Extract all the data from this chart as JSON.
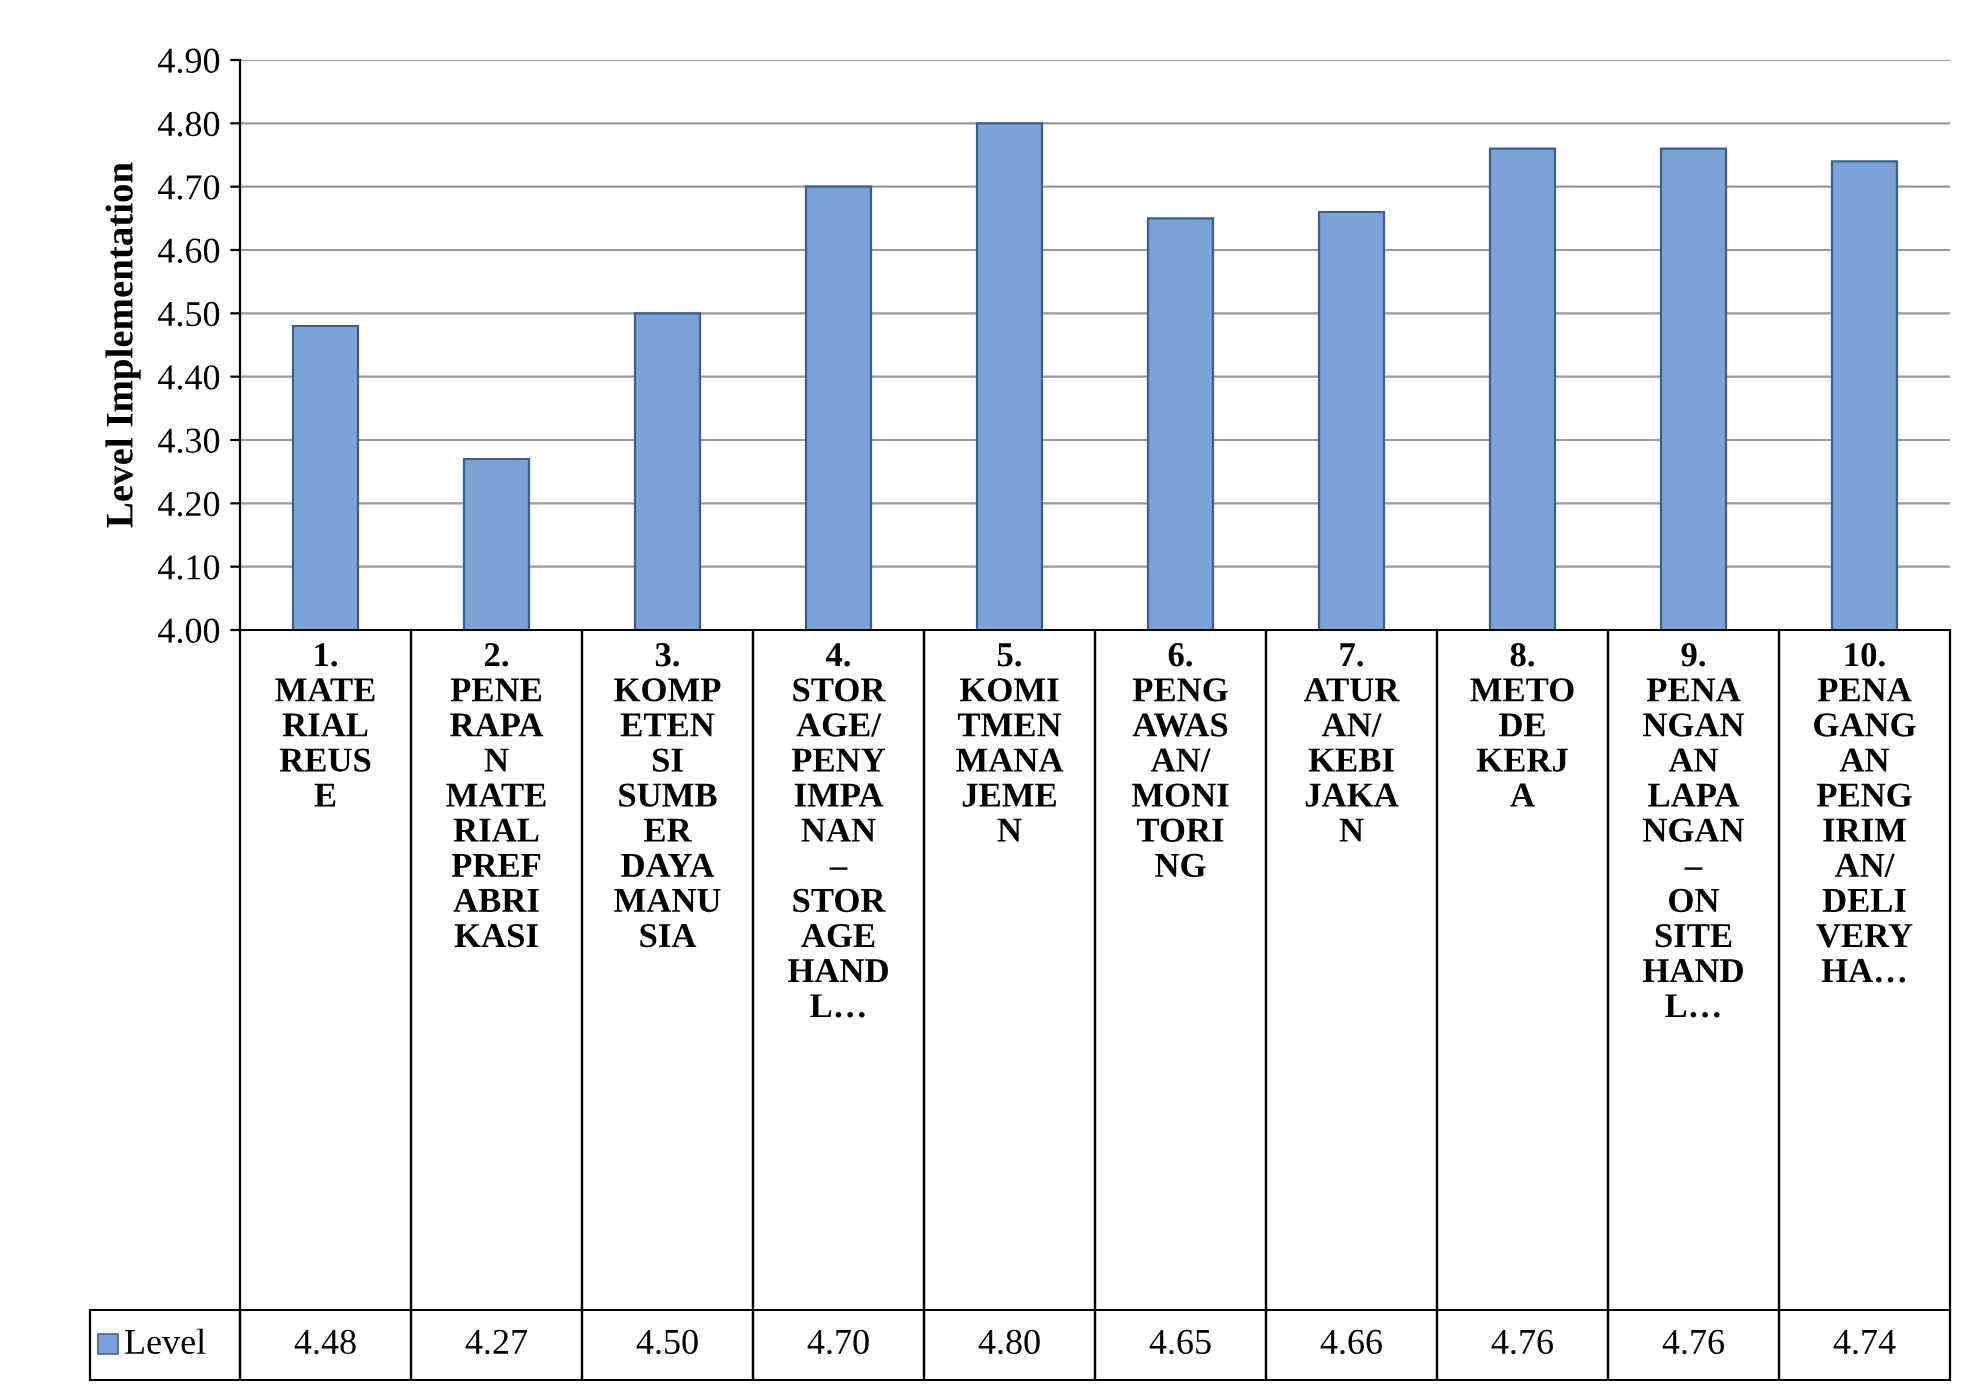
{
  "chart_data": {
    "type": "bar",
    "ylabel": "Level Implementation",
    "categories": [
      "1. MATERIAL REUSE",
      "2. PENERAPAN MATERIAL PREFABRIKASI",
      "3. KOMPETENSI SUMBER DAYA MANUSIA",
      "4. STORAGE/PENYIMPANAN – STORAGE HANDL…",
      "5. KOMITMEN MANAJEMEN",
      "6. PENGAWASAN/MONITORING",
      "7. ATURAN/KEBIJAKAN",
      "8. METODE KERJA",
      "9. PENANGANAN LAPANGAN – ON SITE HANDL…",
      "10. PENAGANGAN PENGIRIMAN/DELIVERY HA…"
    ],
    "series": [
      {
        "name": "Level",
        "color": "#7ba3d8",
        "values": [
          4.48,
          4.27,
          4.5,
          4.7,
          4.8,
          4.65,
          4.66,
          4.76,
          4.76,
          4.74
        ],
        "value_labels": [
          "4.48",
          "4.27",
          "4.50",
          "4.70",
          "4.80",
          "4.65",
          "4.66",
          "4.76",
          "4.76",
          "4.74"
        ]
      }
    ],
    "ylim": [
      4.0,
      4.9
    ],
    "yticks": [
      {
        "value": 4.0,
        "label": "4.00"
      },
      {
        "value": 4.1,
        "label": "4.10"
      },
      {
        "value": 4.2,
        "label": "4.20"
      },
      {
        "value": 4.3,
        "label": "4.30"
      },
      {
        "value": 4.4,
        "label": "4.40"
      },
      {
        "value": 4.5,
        "label": "4.50"
      },
      {
        "value": 4.6,
        "label": "4.60"
      },
      {
        "value": 4.7,
        "label": "4.70"
      },
      {
        "value": 4.8,
        "label": "4.80"
      },
      {
        "value": 4.9,
        "label": "4.90"
      }
    ],
    "grid": "y"
  }
}
